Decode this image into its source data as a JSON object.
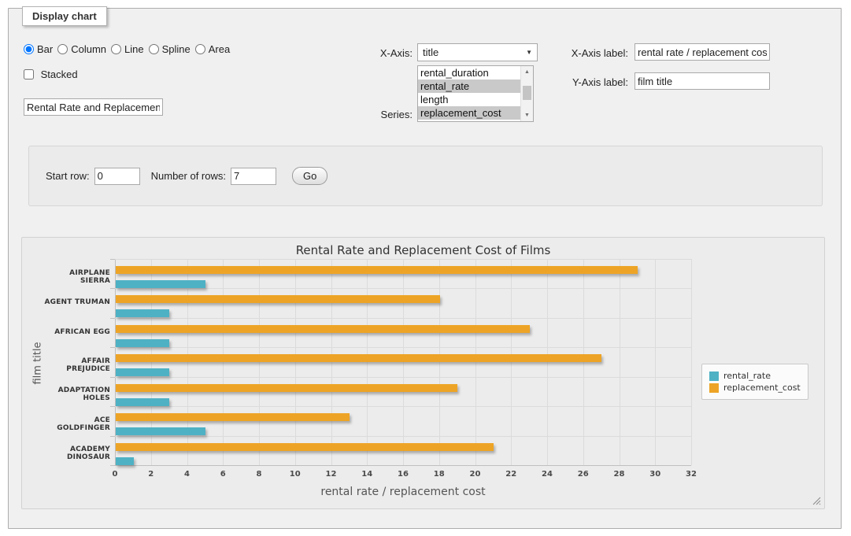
{
  "frame": {
    "legend": "Display chart"
  },
  "chart_type": {
    "options": [
      {
        "label": "Bar",
        "selected": true
      },
      {
        "label": "Column",
        "selected": false
      },
      {
        "label": "Line",
        "selected": false
      },
      {
        "label": "Spline",
        "selected": false
      },
      {
        "label": "Area",
        "selected": false
      }
    ]
  },
  "stacked": {
    "label": "Stacked",
    "checked": false
  },
  "title_field": {
    "value": "Rental Rate and Replacement Cost of Films"
  },
  "x_axis_select": {
    "label": "X-Axis:",
    "value": "title"
  },
  "series_select": {
    "label": "Series:",
    "options": [
      {
        "label": "rental_duration",
        "selected": false
      },
      {
        "label": "rental_rate",
        "selected": true
      },
      {
        "label": "length",
        "selected": false
      },
      {
        "label": "replacement_cost",
        "selected": true
      }
    ]
  },
  "x_axis_label_field": {
    "label": "X-Axis label:",
    "value": "rental rate / replacement cost"
  },
  "y_axis_label_field": {
    "label": "Y-Axis label:",
    "value": "film title"
  },
  "row_panel": {
    "start_row_label": "Start row:",
    "start_row_value": "0",
    "rows_label": "Number of rows:",
    "rows_value": "7",
    "go_label": "Go"
  },
  "icons": {
    "dropdown_arrow": "▼",
    "scroll_up_arrow": "▲",
    "scroll_down_arrow": "▼"
  },
  "colors": {
    "rental_rate": "#4FB1C4",
    "replacement_cost": "#EDA426",
    "grid": "#DBDBDB",
    "axis": "#C0C0C0"
  },
  "chart_data": {
    "type": "bar",
    "orientation": "horizontal",
    "title": "Rental Rate and Replacement Cost of Films",
    "categories": [
      "AIRPLANE SIERRA",
      "AGENT TRUMAN",
      "AFRICAN EGG",
      "AFFAIR PREJUDICE",
      "ADAPTATION HOLES",
      "ACE GOLDFINGER",
      "ACADEMY DINOSAUR"
    ],
    "series": [
      {
        "name": "rental_rate",
        "color": "#4FB1C4",
        "values": [
          4.99,
          2.99,
          2.99,
          2.99,
          2.99,
          4.99,
          0.99
        ]
      },
      {
        "name": "replacement_cost",
        "color": "#EDA426",
        "values": [
          28.99,
          17.99,
          22.99,
          26.99,
          18.99,
          12.99,
          20.99
        ]
      }
    ],
    "xlabel": "rental rate / replacement cost",
    "ylabel": "film title",
    "xlim": [
      0,
      32
    ],
    "xtick_step": 2,
    "grid": true,
    "legend_position": "right"
  }
}
